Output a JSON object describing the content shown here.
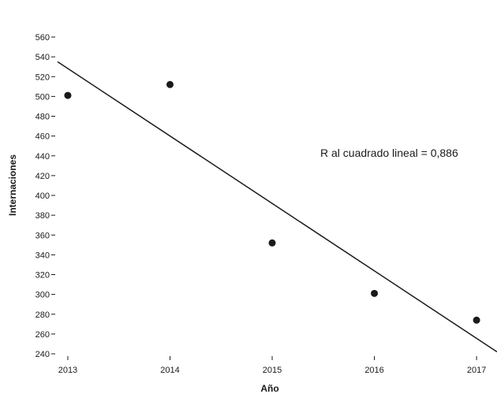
{
  "chart_data": {
    "type": "scatter",
    "xlabel": "Año",
    "ylabel": "Internaciones",
    "x_ticks": [
      "2013",
      "2014",
      "2015",
      "2016",
      "2017"
    ],
    "y_ticks": [
      "240",
      "260",
      "280",
      "300",
      "320",
      "340",
      "360",
      "380",
      "400",
      "420",
      "440",
      "460",
      "480",
      "500",
      "520",
      "540",
      "560"
    ],
    "xlim": [
      2012.9,
      2017.2
    ],
    "ylim": [
      240,
      560
    ],
    "grid": false,
    "points": [
      {
        "x": 2013,
        "y": 501
      },
      {
        "x": 2014,
        "y": 512
      },
      {
        "x": 2015,
        "y": 352
      },
      {
        "x": 2016,
        "y": 301
      },
      {
        "x": 2017,
        "y": 274
      }
    ],
    "fit_line": {
      "type": "linear",
      "x": [
        2012.9,
        2017.2
      ],
      "y": [
        535,
        242
      ]
    },
    "annotation": "R al cuadrado lineal = 0,886",
    "colors": {
      "points": "#1a1a1a",
      "line": "#1a1a1a",
      "axis": "#1a1a1a"
    }
  }
}
